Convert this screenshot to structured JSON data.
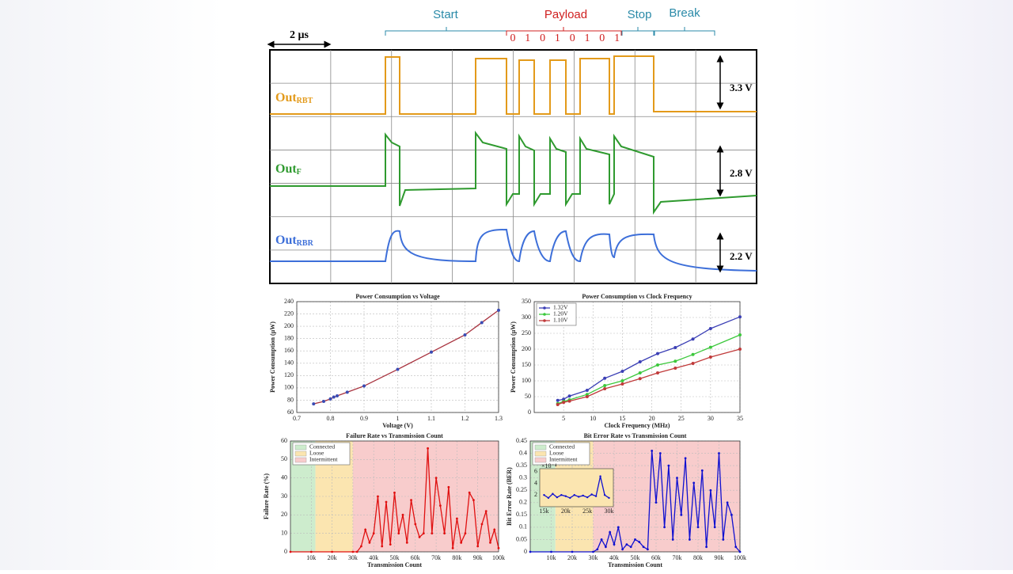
{
  "scope": {
    "scale": "2 µs",
    "sections": [
      "Start",
      "Payload",
      "Stop",
      "Break"
    ],
    "bits": [
      "0",
      "1",
      "0",
      "1",
      "0",
      "1",
      "0",
      "1"
    ],
    "channels": [
      {
        "main": "Out",
        "sub": "RBT",
        "amplitude": "3.3 V"
      },
      {
        "main": "Out",
        "sub": "F",
        "amplitude": "2.8 V"
      },
      {
        "main": "Out",
        "sub": "RBR",
        "amplitude": "2.2 V"
      }
    ]
  },
  "chart_data": [
    {
      "type": "line",
      "title": "Power Consumption vs Voltage",
      "xlabel": "Voltage (V)",
      "ylabel": "Power Consumption (µW)",
      "x": [
        0.75,
        0.78,
        0.8,
        0.81,
        0.82,
        0.85,
        0.9,
        1.0,
        1.1,
        1.2,
        1.25,
        1.3
      ],
      "values": [
        74,
        78,
        82,
        85,
        87,
        93,
        103,
        130,
        158,
        186,
        206,
        226
      ],
      "color": "#3a4cb4",
      "line_color": "#a8323e",
      "xlim": [
        0.7,
        1.3
      ],
      "xticks": [
        0.7,
        0.8,
        0.9,
        1,
        1.1,
        1.2,
        1.3
      ],
      "ylim": [
        60,
        240
      ],
      "yticks": [
        60,
        80,
        100,
        120,
        140,
        160,
        180,
        200,
        220,
        240
      ],
      "grid": true
    },
    {
      "type": "line",
      "title": "Power Consumption vs Clock Frequency",
      "xlabel": "Clock Frequency (MHz)",
      "ylabel": "Power Consumption (µW)",
      "x": [
        4,
        5,
        6,
        9,
        12,
        15,
        18,
        21,
        24,
        27,
        30,
        35
      ],
      "series": [
        {
          "name": "1.32V",
          "color": "#3b3fb5",
          "values": [
            38,
            42,
            52,
            70,
            108,
            130,
            160,
            186,
            205,
            232,
            265,
            302
          ]
        },
        {
          "name": "1.20V",
          "color": "#3cc83c",
          "values": [
            28,
            35,
            40,
            57,
            85,
            100,
            125,
            150,
            162,
            183,
            206,
            245
          ]
        },
        {
          "name": "1.10V",
          "color": "#c03a3a",
          "values": [
            25,
            32,
            36,
            50,
            75,
            90,
            107,
            125,
            140,
            155,
            175,
            200
          ]
        }
      ],
      "xlim": [
        0,
        35
      ],
      "xticks": [
        5,
        10,
        15,
        20,
        25,
        30,
        35
      ],
      "ylim": [
        0,
        350
      ],
      "yticks": [
        0,
        50,
        100,
        150,
        200,
        250,
        300,
        350
      ],
      "grid": true,
      "legend": "top-left"
    },
    {
      "type": "line",
      "title": "Failure Rate vs Transmission Count",
      "xlabel": "Transmission Count",
      "ylabel": "Failure Rate (%)",
      "bands": [
        {
          "name": "Connected",
          "color": "#cdeccd",
          "range": [
            0,
            12000
          ]
        },
        {
          "name": "Loose",
          "color": "#fbe5b0",
          "range": [
            12000,
            30000
          ]
        },
        {
          "name": "Intermittent",
          "color": "#f8cccc",
          "range": [
            30000,
            100000
          ]
        }
      ],
      "x": [
        0,
        10000,
        20000,
        30000,
        32000,
        34000,
        36000,
        38000,
        40000,
        42000,
        44000,
        46000,
        48000,
        50000,
        52000,
        54000,
        56000,
        58000,
        60000,
        62000,
        64000,
        66000,
        68000,
        70000,
        72000,
        74000,
        76000,
        78000,
        80000,
        82000,
        84000,
        86000,
        88000,
        90000,
        92000,
        94000,
        96000,
        98000,
        100000
      ],
      "values": [
        0,
        0,
        0,
        0,
        0,
        3,
        12,
        5,
        10,
        30,
        3,
        27,
        4,
        32,
        10,
        20,
        5,
        28,
        15,
        8,
        10,
        56,
        10,
        40,
        25,
        10,
        35,
        2,
        18,
        5,
        10,
        32,
        28,
        3,
        15,
        22,
        5,
        12,
        2
      ],
      "color": "#e01010",
      "xlim": [
        0,
        100000
      ],
      "xticks": [
        {
          "value": 10000,
          "label": "10k"
        },
        {
          "value": 20000,
          "label": "20k"
        },
        {
          "value": 30000,
          "label": "30k"
        },
        {
          "value": 40000,
          "label": "40k"
        },
        {
          "value": 50000,
          "label": "50k"
        },
        {
          "value": 60000,
          "label": "60k"
        },
        {
          "value": 70000,
          "label": "70k"
        },
        {
          "value": 80000,
          "label": "80k"
        },
        {
          "value": 90000,
          "label": "90k"
        },
        {
          "value": 100000,
          "label": "100k"
        }
      ],
      "ylim": [
        0,
        60
      ],
      "yticks": [
        0,
        10,
        20,
        30,
        40,
        50,
        60
      ],
      "grid": true,
      "legend": "top-left"
    },
    {
      "type": "line",
      "title": "Bit Error Rate vs Transmission Count",
      "xlabel": "Transmission Count",
      "ylabel": "Bit Error Rate (BER)",
      "bands": [
        {
          "name": "Connected",
          "color": "#cdeccd",
          "range": [
            0,
            12000
          ]
        },
        {
          "name": "Loose",
          "color": "#fbe5b0",
          "range": [
            12000,
            30000
          ]
        },
        {
          "name": "Intermittent",
          "color": "#f8cccc",
          "range": [
            30000,
            100000
          ]
        }
      ],
      "x": [
        0,
        10000,
        20000,
        30000,
        32000,
        34000,
        36000,
        38000,
        40000,
        42000,
        44000,
        46000,
        48000,
        50000,
        52000,
        54000,
        56000,
        58000,
        60000,
        62000,
        64000,
        66000,
        68000,
        70000,
        72000,
        74000,
        76000,
        78000,
        80000,
        82000,
        84000,
        86000,
        88000,
        90000,
        92000,
        94000,
        96000,
        98000,
        100000
      ],
      "values": [
        0,
        0,
        0,
        0,
        0.01,
        0.05,
        0.02,
        0.08,
        0.03,
        0.1,
        0.01,
        0.03,
        0.02,
        0.05,
        0.04,
        0.02,
        0.01,
        0.41,
        0.2,
        0.4,
        0.1,
        0.35,
        0.05,
        0.3,
        0.15,
        0.38,
        0.05,
        0.28,
        0.1,
        0.33,
        0.02,
        0.25,
        0.1,
        0.4,
        0.05,
        0.2,
        0.15,
        0.02,
        0
      ],
      "color": "#1010d0",
      "xlim": [
        0,
        100000
      ],
      "xticks": [
        {
          "value": 10000,
          "label": "10k"
        },
        {
          "value": 20000,
          "label": "20k"
        },
        {
          "value": 30000,
          "label": "30k"
        },
        {
          "value": 40000,
          "label": "40k"
        },
        {
          "value": 50000,
          "label": "50k"
        },
        {
          "value": 60000,
          "label": "60k"
        },
        {
          "value": 70000,
          "label": "70k"
        },
        {
          "value": 80000,
          "label": "80k"
        },
        {
          "value": 90000,
          "label": "90k"
        },
        {
          "value": 100000,
          "label": "100k"
        }
      ],
      "ylim": [
        0,
        0.45
      ],
      "yticks": [
        0,
        0.05,
        0.1,
        0.15,
        0.2,
        0.25,
        0.3,
        0.35,
        0.4,
        0.45
      ],
      "grid": true,
      "legend": "top-left",
      "inset": {
        "scale_label": "×10⁻⁴",
        "x": [
          15000,
          16000,
          17000,
          18000,
          19000,
          20000,
          21000,
          22000,
          23000,
          24000,
          25000,
          26000,
          27000,
          28000,
          29000,
          30000
        ],
        "values": [
          2,
          1.5,
          2.2,
          1.6,
          2,
          1.8,
          1.5,
          2,
          1.7,
          1.9,
          1.6,
          2.1,
          1.8,
          5.2,
          2,
          1.5
        ],
        "xlim": [
          14000,
          31000
        ],
        "xticks": [
          {
            "value": 15000,
            "label": "15k"
          },
          {
            "value": 20000,
            "label": "20k"
          },
          {
            "value": 25000,
            "label": "25k"
          },
          {
            "value": 30000,
            "label": "30k"
          }
        ],
        "ylim": [
          0,
          6.5
        ],
        "yticks": [
          2,
          4,
          6
        ]
      }
    }
  ]
}
